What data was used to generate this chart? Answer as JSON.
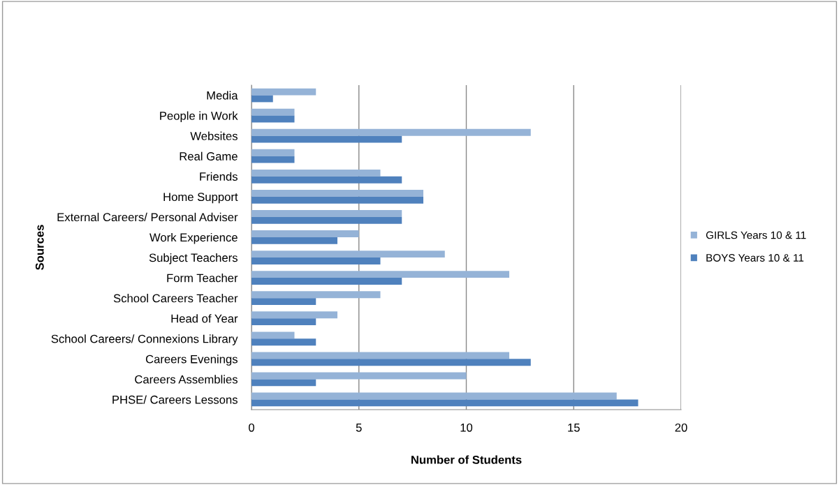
{
  "chart_data": {
    "type": "bar",
    "orientation": "horizontal",
    "xlabel": "Number of Students",
    "ylabel": "Sources",
    "categories": [
      "Media",
      "People in Work",
      "Websites",
      "Real Game",
      "Friends",
      "Home Support",
      "External Careers/ Personal Adviser",
      "Work Experience",
      "Subject Teachers",
      "Form Teacher",
      "School Careers Teacher",
      "Head of Year",
      "School Careers/ Connexions Library",
      "Careers Evenings",
      "Careers Assemblies",
      "PHSE/ Careers Lessons"
    ],
    "series": [
      {
        "name": "GIRLS Years 10 & 11",
        "color": "#95b3d7",
        "values": [
          3,
          2,
          13,
          2,
          6,
          8,
          7,
          5,
          9,
          12,
          6,
          4,
          2,
          12,
          10,
          17
        ]
      },
      {
        "name": "BOYS Years 10 & 11",
        "color": "#4f81bd",
        "values": [
          1,
          2,
          7,
          2,
          7,
          8,
          7,
          4,
          6,
          7,
          3,
          3,
          3,
          13,
          3,
          18
        ]
      }
    ],
    "xlim": [
      0,
      20
    ],
    "xticks": [
      0,
      5,
      10,
      15,
      20
    ],
    "grid": "x",
    "legend": "right"
  }
}
